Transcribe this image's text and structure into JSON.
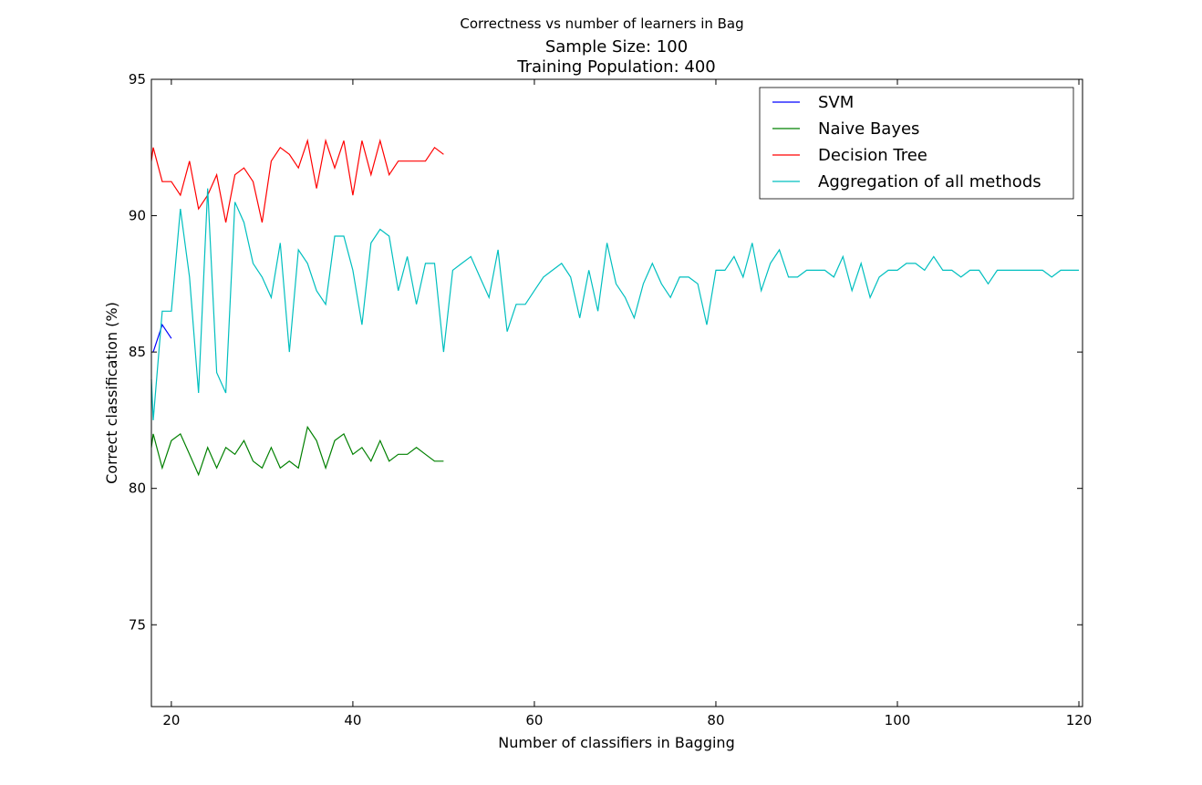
{
  "chart_data": {
    "type": "line",
    "suptitle": "Correctness vs number of learners in Bag",
    "title_lines": [
      "Sample Size: 100",
      "Training Population: 400"
    ],
    "xlabel": "Number of classifiers in Bagging",
    "ylabel": "Correct classification (%)",
    "xlim": [
      17.8,
      120.4
    ],
    "ylim": [
      72.0,
      95.0
    ],
    "xticks": [
      20,
      40,
      60,
      80,
      100,
      120
    ],
    "xtick_labels": [
      "20",
      "40",
      "60",
      "80",
      "100",
      "120"
    ],
    "yticks": [
      75,
      80,
      85,
      90,
      95
    ],
    "ytick_labels": [
      "75",
      "80",
      "85",
      "90",
      "95"
    ],
    "grid": false,
    "legend_position": "top-right",
    "series": [
      {
        "name": "SVM",
        "color": "#0000ff",
        "x": [
          18,
          19,
          20
        ],
        "y": [
          85.0,
          86.0,
          85.5
        ]
      },
      {
        "name": "Naive Bayes",
        "color": "#008000",
        "x": [
          17.8,
          18,
          19,
          20,
          21,
          22,
          23,
          24,
          25,
          26,
          27,
          28,
          29,
          30,
          31,
          32,
          33,
          34,
          35,
          36,
          37,
          38,
          39,
          40,
          41,
          42,
          43,
          44,
          45,
          46,
          47,
          48,
          49,
          50
        ],
        "y": [
          81.5,
          82.0,
          80.75,
          81.75,
          82.0,
          81.25,
          80.5,
          81.5,
          80.75,
          81.5,
          81.25,
          81.75,
          81.0,
          80.75,
          81.5,
          80.75,
          81.0,
          80.75,
          82.25,
          81.75,
          80.75,
          81.75,
          82.0,
          81.25,
          81.5,
          81.0,
          81.75,
          81.0,
          81.25,
          81.25,
          81.5,
          81.25,
          81.0,
          81.0
        ]
      },
      {
        "name": "Decision Tree",
        "color": "#ff0000",
        "x": [
          17.8,
          18,
          19,
          20,
          21,
          22,
          23,
          24,
          25,
          26,
          27,
          28,
          29,
          30,
          31,
          32,
          33,
          34,
          35,
          36,
          37,
          38,
          39,
          40,
          41,
          42,
          43,
          44,
          45,
          46,
          47,
          48,
          49,
          50
        ],
        "y": [
          92.0,
          92.5,
          91.25,
          91.25,
          90.75,
          92.0,
          90.25,
          90.75,
          91.5,
          89.75,
          91.5,
          91.75,
          91.25,
          89.75,
          92.0,
          92.5,
          92.25,
          91.75,
          92.75,
          91.0,
          92.75,
          91.75,
          92.75,
          90.75,
          92.75,
          91.5,
          92.75,
          91.5,
          92.0,
          92.0,
          92.0,
          92.0,
          92.5,
          92.25
        ]
      },
      {
        "name": "Aggregation of all methods",
        "color": "#00bfbf",
        "x": [
          17.8,
          18,
          19,
          20,
          21,
          22,
          23,
          24,
          25,
          26,
          27,
          28,
          29,
          30,
          31,
          32,
          33,
          34,
          35,
          36,
          37,
          38,
          39,
          40,
          41,
          42,
          43,
          44,
          45,
          46,
          47,
          48,
          49,
          50,
          51,
          52,
          53,
          54,
          55,
          56,
          57,
          58,
          59,
          60,
          61,
          62,
          63,
          64,
          65,
          66,
          67,
          68,
          69,
          70,
          71,
          72,
          73,
          74,
          75,
          76,
          77,
          78,
          79,
          80,
          81,
          82,
          83,
          84,
          85,
          86,
          87,
          88,
          89,
          90,
          91,
          92,
          93,
          94,
          95,
          96,
          97,
          98,
          99,
          100,
          101,
          102,
          103,
          104,
          105,
          106,
          107,
          108,
          109,
          110,
          111,
          112,
          113,
          114,
          115,
          116,
          117,
          118,
          119,
          120
        ],
        "y": [
          84.0,
          82.5,
          86.5,
          86.5,
          90.25,
          87.75,
          83.5,
          91.0,
          84.25,
          83.5,
          90.5,
          89.75,
          88.25,
          87.75,
          87.0,
          89.0,
          85.0,
          88.75,
          88.25,
          87.25,
          86.75,
          89.25,
          89.25,
          88.0,
          86.0,
          89.0,
          89.5,
          89.25,
          87.25,
          88.5,
          86.75,
          88.25,
          88.25,
          85.0,
          88.0,
          88.25,
          88.5,
          87.75,
          87.0,
          88.75,
          85.75,
          86.75,
          86.75,
          87.25,
          87.75,
          88.0,
          88.25,
          87.75,
          86.25,
          88.0,
          86.5,
          89.0,
          87.5,
          87.0,
          86.25,
          87.5,
          88.25,
          87.5,
          87.0,
          87.75,
          87.75,
          87.5,
          86.0,
          88.0,
          88.0,
          88.5,
          87.75,
          89.0,
          87.25,
          88.25,
          88.75,
          87.75,
          87.75,
          88.0,
          88.0,
          88.0,
          87.75,
          88.5,
          87.25,
          88.25,
          87.0,
          87.75,
          88.0,
          88.0,
          88.25,
          88.25,
          88.0,
          88.5,
          88.0,
          88.0,
          87.75,
          88.0,
          88.0,
          87.5,
          88.0,
          88.0,
          88.0,
          88.0,
          88.0,
          88.0,
          87.75,
          88.0,
          88.0,
          88.0
        ]
      }
    ]
  }
}
